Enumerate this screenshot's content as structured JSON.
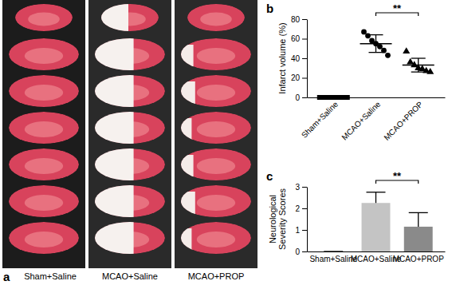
{
  "panel_a": {
    "panel": "a",
    "labels": [
      "Sham+Saline",
      "MCAO+Saline",
      "MCAO+PROP"
    ]
  },
  "chart_data": [
    {
      "type": "scatter",
      "panel": "b",
      "y_label": "Infarct volume (%)",
      "categories": [
        "Sham+Saline",
        "MCAO+Saline",
        "MCAO+PROP"
      ],
      "points": [
        [
          0,
          0,
          0,
          0,
          0,
          0,
          0,
          0
        ],
        [
          67,
          63,
          58,
          55,
          52,
          48,
          43
        ],
        [
          47,
          36,
          33,
          30,
          29,
          27,
          26
        ]
      ],
      "values": [
        0,
        55,
        33
      ],
      "error": [
        0,
        9,
        7
      ],
      "ylim": [
        0,
        80
      ],
      "yticks": [
        0,
        20,
        40,
        60,
        80
      ],
      "annotations": [
        "**"
      ],
      "color": "#000000"
    },
    {
      "type": "bar",
      "panel": "c",
      "y_label": "Neurological Severity Scores",
      "categories": [
        "Sham+Saline",
        "MCAO+Saline",
        "MCAO+PROP"
      ],
      "values": [
        0,
        2.25,
        1.15
      ],
      "error": [
        0,
        0.5,
        0.65
      ],
      "colors": [
        "#bdbdbd",
        "#c4c4c4",
        "#8a8a8a"
      ],
      "ylim": [
        0,
        3
      ],
      "yticks": [
        0,
        1,
        2,
        3
      ],
      "annotations": [
        "**"
      ]
    }
  ]
}
